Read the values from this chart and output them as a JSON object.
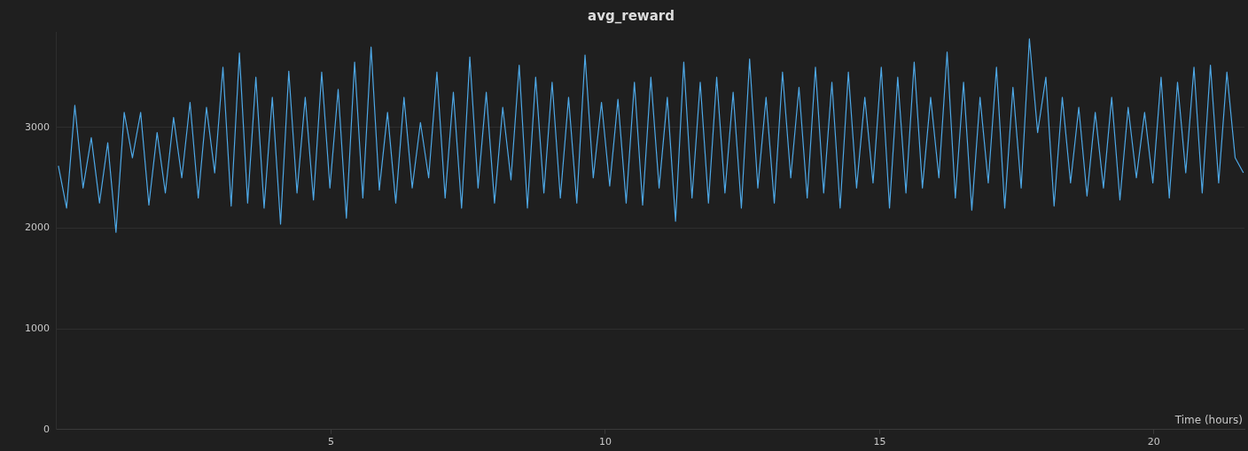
{
  "chart_data": {
    "type": "line",
    "title": "avg_reward",
    "xlabel": "Time (hours)",
    "xlim": [
      0,
      21.65
    ],
    "xticks": [
      5,
      10,
      15,
      20
    ],
    "ylim": [
      0,
      3950
    ],
    "yticks": [
      0,
      1000,
      2000,
      3000
    ],
    "grid": "y",
    "legend": false,
    "marker": "none",
    "line_style": "solid",
    "series": [
      {
        "color": "#4ea8e6",
        "x": [
          0.03,
          0.18,
          0.33,
          0.48,
          0.63,
          0.78,
          0.93,
          1.08,
          1.23,
          1.38,
          1.53,
          1.68,
          1.83,
          1.98,
          2.13,
          2.28,
          2.43,
          2.58,
          2.73,
          2.88,
          3.03,
          3.18,
          3.33,
          3.48,
          3.63,
          3.78,
          3.93,
          4.08,
          4.23,
          4.38,
          4.53,
          4.68,
          4.83,
          4.98,
          5.13,
          5.28,
          5.43,
          5.58,
          5.73,
          5.88,
          6.03,
          6.18,
          6.33,
          6.48,
          6.63,
          6.78,
          6.93,
          7.08,
          7.23,
          7.38,
          7.53,
          7.68,
          7.83,
          7.98,
          8.13,
          8.28,
          8.43,
          8.58,
          8.73,
          8.88,
          9.03,
          9.18,
          9.33,
          9.48,
          9.63,
          9.78,
          9.93,
          10.08,
          10.23,
          10.38,
          10.53,
          10.68,
          10.83,
          10.98,
          11.13,
          11.28,
          11.43,
          11.58,
          11.73,
          11.88,
          12.03,
          12.18,
          12.33,
          12.48,
          12.63,
          12.78,
          12.93,
          13.08,
          13.23,
          13.38,
          13.53,
          13.68,
          13.83,
          13.98,
          14.13,
          14.28,
          14.43,
          14.58,
          14.73,
          14.88,
          15.03,
          15.18,
          15.33,
          15.48,
          15.63,
          15.78,
          15.93,
          16.08,
          16.23,
          16.38,
          16.53,
          16.68,
          16.83,
          16.98,
          17.13,
          17.28,
          17.43,
          17.58,
          17.73,
          17.88,
          18.03,
          18.18,
          18.33,
          18.48,
          18.63,
          18.78,
          18.93,
          19.08,
          19.23,
          19.38,
          19.53,
          19.68,
          19.83,
          19.98,
          20.13,
          20.28,
          20.43,
          20.58,
          20.73,
          20.88,
          21.03,
          21.18,
          21.33,
          21.48,
          21.63
        ],
        "values": [
          2620,
          2200,
          3220,
          2400,
          2900,
          2250,
          2850,
          1960,
          3150,
          2700,
          3150,
          2230,
          2950,
          2350,
          3100,
          2500,
          3250,
          2300,
          3200,
          2550,
          3600,
          2220,
          3740,
          2250,
          3500,
          2200,
          3300,
          2040,
          3560,
          2350,
          3300,
          2280,
          3550,
          2400,
          3380,
          2100,
          3650,
          2300,
          3800,
          2380,
          3150,
          2250,
          3300,
          2400,
          3050,
          2500,
          3550,
          2300,
          3350,
          2200,
          3700,
          2400,
          3350,
          2250,
          3200,
          2480,
          3620,
          2200,
          3500,
          2350,
          3450,
          2300,
          3300,
          2250,
          3720,
          2500,
          3250,
          2420,
          3280,
          2250,
          3450,
          2230,
          3500,
          2400,
          3300,
          2070,
          3650,
          2300,
          3450,
          2250,
          3500,
          2350,
          3350,
          2200,
          3680,
          2400,
          3300,
          2250,
          3550,
          2500,
          3400,
          2300,
          3600,
          2350,
          3450,
          2200,
          3550,
          2400,
          3300,
          2450,
          3600,
          2200,
          3500,
          2350,
          3650,
          2400,
          3300,
          2500,
          3750,
          2300,
          3450,
          2180,
          3300,
          2450,
          3600,
          2200,
          3400,
          2400,
          3880,
          2950,
          3500,
          2220,
          3300,
          2450,
          3200,
          2320,
          3150,
          2400,
          3300,
          2280,
          3200,
          2500,
          3150,
          2450,
          3500,
          2300,
          3450,
          2550,
          3600,
          2350,
          3620,
          2450,
          3550,
          2700,
          2550
        ]
      }
    ]
  }
}
